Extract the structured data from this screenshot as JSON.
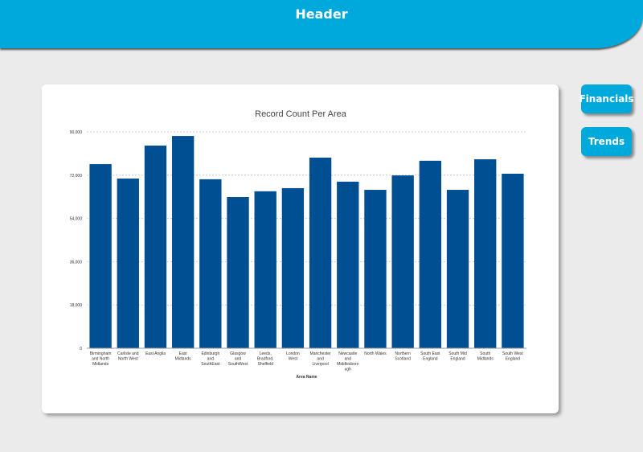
{
  "header": {
    "title": "Header"
  },
  "buttons": {
    "financials": "Financials",
    "trends": "Trends"
  },
  "chart_data": {
    "type": "bar",
    "title": "Record Count Per Area",
    "xlabel": "Area Name",
    "ylabel": "",
    "ylim": [
      0,
      90000
    ],
    "yticks": [
      0,
      18000,
      36000,
      54000,
      72000,
      90000
    ],
    "ytick_labels": [
      "0",
      "18,000",
      "36,000",
      "54,000",
      "72,000",
      "90,000"
    ],
    "grid": true,
    "bar_color": "#004f93",
    "categories": [
      "Birmingham and North Midlands",
      "Carlisle and North West",
      "East Anglia",
      "East Midlands",
      "Edinburgh and SouthEast",
      "Glasgow and SouthWest",
      "Leeds, Bradford, Sheffield",
      "London West",
      "Manchester and Liverpool",
      "Newcastle and Middlesborough",
      "North Wales",
      "Northern Scotland",
      "South East England",
      "South Mid England",
      "South Midlands",
      "South West England"
    ],
    "category_lines": [
      [
        "Birmingham",
        "and North",
        "Midlands"
      ],
      [
        "Carlisle and",
        "North West"
      ],
      [
        "East Anglia"
      ],
      [
        "East",
        "Midlands"
      ],
      [
        "Edinburgh",
        "and",
        "SouthEast"
      ],
      [
        "Glasgow",
        "and",
        "SouthWest"
      ],
      [
        "Leeds,",
        "Bradford,",
        "Sheffield"
      ],
      [
        "London",
        "West"
      ],
      [
        "Manchester",
        "and",
        "Liverpool"
      ],
      [
        "Newcastle",
        "and",
        "Middlesboro",
        "ugh"
      ],
      [
        "North Wales"
      ],
      [
        "Northern",
        "Scotland"
      ],
      [
        "South East",
        "England"
      ],
      [
        "South Mid",
        "England"
      ],
      [
        "South",
        "Midlands"
      ],
      [
        "South West",
        "England"
      ]
    ],
    "values": [
      76600,
      70600,
      84300,
      88300,
      70300,
      62900,
      65300,
      66600,
      79300,
      69300,
      65900,
      71900,
      78000,
      65900,
      78600,
      72600
    ]
  }
}
